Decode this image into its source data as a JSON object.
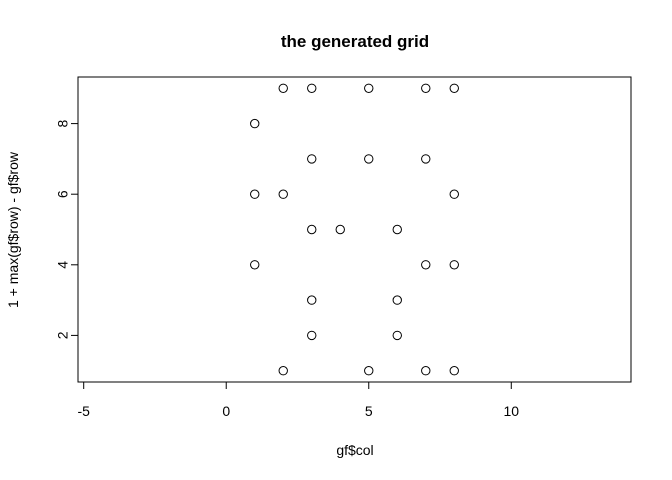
{
  "chart_data": {
    "type": "scatter",
    "title": "the generated grid",
    "xlabel": "gf$col",
    "ylabel": "1 + max(gf$row) - gf$row",
    "xlim": [
      -5.2,
      14.2
    ],
    "ylim": [
      0.68,
      9.32
    ],
    "x_ticks": [
      -5,
      0,
      5,
      10
    ],
    "y_ticks": [
      2,
      4,
      6,
      8
    ],
    "grid": false,
    "marker": "open-circle",
    "points": [
      {
        "x": 2,
        "y": 9
      },
      {
        "x": 3,
        "y": 9
      },
      {
        "x": 5,
        "y": 9
      },
      {
        "x": 7,
        "y": 9
      },
      {
        "x": 8,
        "y": 9
      },
      {
        "x": 1,
        "y": 8
      },
      {
        "x": 3,
        "y": 7
      },
      {
        "x": 5,
        "y": 7
      },
      {
        "x": 7,
        "y": 7
      },
      {
        "x": 1,
        "y": 6
      },
      {
        "x": 2,
        "y": 6
      },
      {
        "x": 8,
        "y": 6
      },
      {
        "x": 3,
        "y": 5
      },
      {
        "x": 4,
        "y": 5
      },
      {
        "x": 6,
        "y": 5
      },
      {
        "x": 1,
        "y": 4
      },
      {
        "x": 7,
        "y": 4
      },
      {
        "x": 8,
        "y": 4
      },
      {
        "x": 3,
        "y": 3
      },
      {
        "x": 6,
        "y": 3
      },
      {
        "x": 3,
        "y": 2
      },
      {
        "x": 6,
        "y": 2
      },
      {
        "x": 2,
        "y": 1
      },
      {
        "x": 5,
        "y": 1
      },
      {
        "x": 7,
        "y": 1
      },
      {
        "x": 8,
        "y": 1
      }
    ]
  }
}
